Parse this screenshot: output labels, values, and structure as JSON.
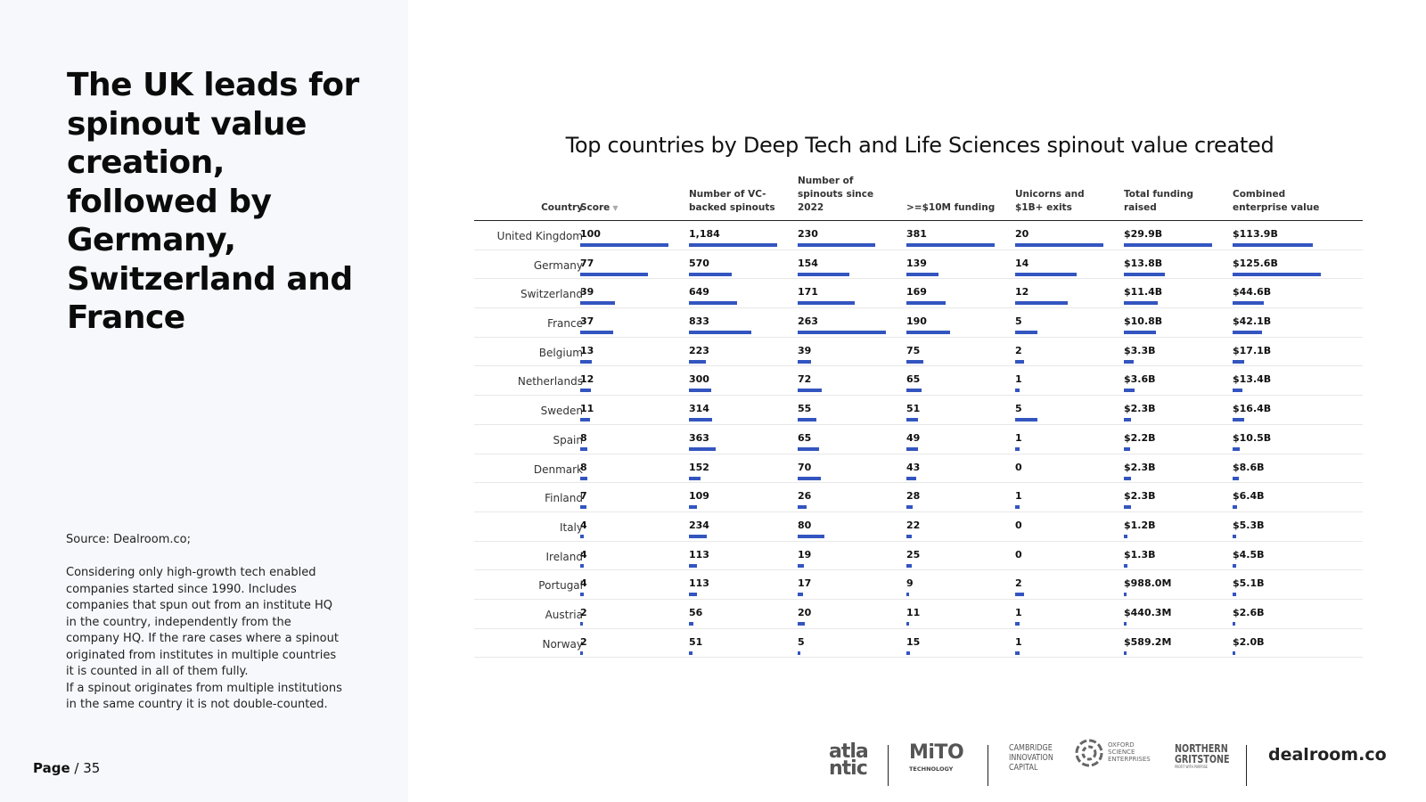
{
  "left": {
    "headline": "The UK leads for spinout value creation, followed by Germany, Switzerland and France",
    "source": "Source: Dealroom.co;",
    "notes": [
      "Considering only high-growth tech enabled companies started since 1990. Includes companies that spun out from an institute HQ in the country, independently from the company HQ. If the rare cases where a spinout originated from institutes in multiple countries it is counted in all of them fully.",
      "If a spinout originates from multiple institutions in the same country it is not double-counted."
    ],
    "page_label": "Page",
    "page_sep": "/ 35"
  },
  "logos": {
    "atlantic_a": "atla",
    "atlantic_b": "ntic",
    "mito": "MiTO",
    "mito_sub": "TECHNOLOGY",
    "cambridge": [
      "CAMBRIDGE",
      "INNOVATION",
      "CAPITAL"
    ],
    "oxford": [
      "OXFORD",
      "SCIENCE",
      "ENTERPRISES"
    ],
    "northern": [
      "NORTHERN",
      "GRITSTONE"
    ],
    "northern_sub": "PROFIT WITH PURPOSE",
    "dealroom": "dealroom.co"
  },
  "chart_data": {
    "type": "table",
    "title": "Top countries by Deep Tech and Life Sciences spinout value created",
    "columns": [
      {
        "key": "country",
        "label": "Country"
      },
      {
        "key": "score",
        "label": "Score",
        "sorted": "descending"
      },
      {
        "key": "vc_backed",
        "label": "Number of VC-backed spinouts"
      },
      {
        "key": "since_2022",
        "label": "Number of spinouts since 2022"
      },
      {
        "key": "funding_10m",
        "label": ">=$10M funding"
      },
      {
        "key": "unicorns",
        "label": "Unicorns and $1B+ exits"
      },
      {
        "key": "total_funding",
        "label": "Total funding raised"
      },
      {
        "key": "enterprise_value",
        "label": "Combined enterprise value"
      }
    ],
    "bar_color": "#3355c0",
    "rows": [
      {
        "country": "United Kingdom",
        "score": "100",
        "vc_backed": "1,184",
        "since_2022": "230",
        "funding_10m": "381",
        "unicorns": "20",
        "total_funding": "$29.9B",
        "enterprise_value": "$113.9B"
      },
      {
        "country": "Germany",
        "score": "77",
        "vc_backed": "570",
        "since_2022": "154",
        "funding_10m": "139",
        "unicorns": "14",
        "total_funding": "$13.8B",
        "enterprise_value": "$125.6B"
      },
      {
        "country": "Switzerland",
        "score": "39",
        "vc_backed": "649",
        "since_2022": "171",
        "funding_10m": "169",
        "unicorns": "12",
        "total_funding": "$11.4B",
        "enterprise_value": "$44.6B"
      },
      {
        "country": "France",
        "score": "37",
        "vc_backed": "833",
        "since_2022": "263",
        "funding_10m": "190",
        "unicorns": "5",
        "total_funding": "$10.8B",
        "enterprise_value": "$42.1B"
      },
      {
        "country": "Belgium",
        "score": "13",
        "vc_backed": "223",
        "since_2022": "39",
        "funding_10m": "75",
        "unicorns": "2",
        "total_funding": "$3.3B",
        "enterprise_value": "$17.1B"
      },
      {
        "country": "Netherlands",
        "score": "12",
        "vc_backed": "300",
        "since_2022": "72",
        "funding_10m": "65",
        "unicorns": "1",
        "total_funding": "$3.6B",
        "enterprise_value": "$13.4B"
      },
      {
        "country": "Sweden",
        "score": "11",
        "vc_backed": "314",
        "since_2022": "55",
        "funding_10m": "51",
        "unicorns": "5",
        "total_funding": "$2.3B",
        "enterprise_value": "$16.4B"
      },
      {
        "country": "Spain",
        "score": "8",
        "vc_backed": "363",
        "since_2022": "65",
        "funding_10m": "49",
        "unicorns": "1",
        "total_funding": "$2.2B",
        "enterprise_value": "$10.5B"
      },
      {
        "country": "Denmark",
        "score": "8",
        "vc_backed": "152",
        "since_2022": "70",
        "funding_10m": "43",
        "unicorns": "0",
        "total_funding": "$2.3B",
        "enterprise_value": "$8.6B"
      },
      {
        "country": "Finland",
        "score": "7",
        "vc_backed": "109",
        "since_2022": "26",
        "funding_10m": "28",
        "unicorns": "1",
        "total_funding": "$2.3B",
        "enterprise_value": "$6.4B"
      },
      {
        "country": "Italy",
        "score": "4",
        "vc_backed": "234",
        "since_2022": "80",
        "funding_10m": "22",
        "unicorns": "0",
        "total_funding": "$1.2B",
        "enterprise_value": "$5.3B"
      },
      {
        "country": "Ireland",
        "score": "4",
        "vc_backed": "113",
        "since_2022": "19",
        "funding_10m": "25",
        "unicorns": "0",
        "total_funding": "$1.3B",
        "enterprise_value": "$4.5B"
      },
      {
        "country": "Portugal",
        "score": "4",
        "vc_backed": "113",
        "since_2022": "17",
        "funding_10m": "9",
        "unicorns": "2",
        "total_funding": "$988.0M",
        "enterprise_value": "$5.1B"
      },
      {
        "country": "Austria",
        "score": "2",
        "vc_backed": "56",
        "since_2022": "20",
        "funding_10m": "11",
        "unicorns": "1",
        "total_funding": "$440.3M",
        "enterprise_value": "$2.6B"
      },
      {
        "country": "Norway",
        "score": "2",
        "vc_backed": "51",
        "since_2022": "5",
        "funding_10m": "15",
        "unicorns": "1",
        "total_funding": "$589.2M",
        "enterprise_value": "$2.0B"
      }
    ]
  }
}
